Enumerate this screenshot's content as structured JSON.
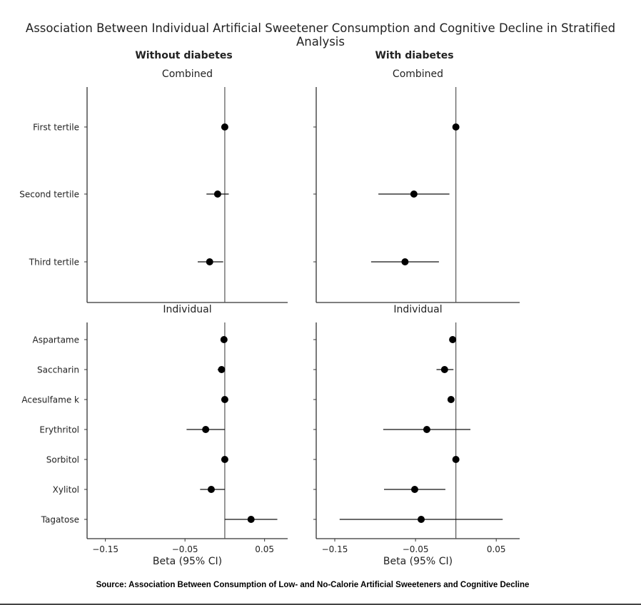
{
  "title": "Association Between Individual Artificial Sweetener Consumption and Cognitive Decline in Stratified Analysis",
  "source": "Source: Association Between Consumption of Low- and No-Calorie Artificial Sweeteners and Cognitive Decline",
  "chart_data": {
    "type": "forest",
    "columns": [
      "Without diabetes",
      "With diabetes"
    ],
    "xlabel": "Beta (95% CI)",
    "xlim": [
      -0.173,
      0.079
    ],
    "xticks": [
      -0.15,
      -0.05,
      0.05
    ],
    "xtick_labels": [
      "−0.15",
      "−0.05",
      "0.05"
    ],
    "reference_line": 0,
    "grid": false,
    "panels": [
      {
        "name": "Combined",
        "categories": [
          "First tertile",
          "Second tertile",
          "Third tertile"
        ],
        "series": [
          {
            "column": "Without diabetes",
            "beta": [
              0,
              -0.009,
              -0.019
            ],
            "lower": [
              0,
              -0.023,
              -0.034
            ],
            "upper": [
              0,
              0.005,
              -0.002
            ]
          },
          {
            "column": "With diabetes",
            "beta": [
              0,
              -0.052,
              -0.063
            ],
            "lower": [
              0,
              -0.096,
              -0.105
            ],
            "upper": [
              0,
              -0.008,
              -0.021
            ]
          }
        ]
      },
      {
        "name": "Individual",
        "categories": [
          "Aspartame",
          "Saccharin",
          "Acesulfame k",
          "Erythritol",
          "Sorbitol",
          "Xylitol",
          "Tagatose"
        ],
        "series": [
          {
            "column": "Without diabetes",
            "beta": [
              -0.001,
              -0.004,
              0,
              -0.024,
              0,
              -0.017,
              0.033
            ],
            "lower": [
              -0.001,
              -0.009,
              0,
              -0.048,
              0,
              -0.031,
              0
            ],
            "upper": [
              -0.001,
              -0.001,
              0,
              0,
              0,
              0,
              0.066
            ]
          },
          {
            "column": "With diabetes",
            "beta": [
              -0.004,
              -0.014,
              -0.006,
              -0.036,
              0,
              -0.051,
              -0.043
            ],
            "lower": [
              -0.004,
              -0.024,
              -0.006,
              -0.09,
              0,
              -0.089,
              -0.144
            ],
            "upper": [
              -0.004,
              -0.003,
              -0.006,
              0.018,
              0,
              -0.013,
              0.058
            ]
          }
        ]
      }
    ]
  }
}
